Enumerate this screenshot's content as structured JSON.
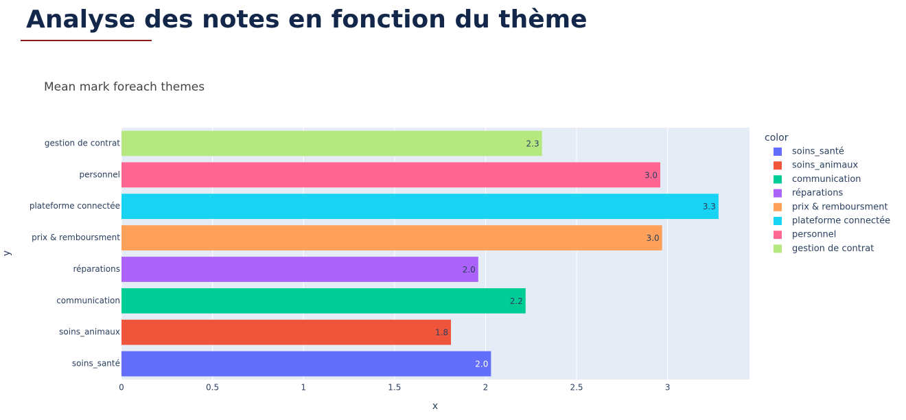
{
  "header": {
    "title": "Analyse des notes en fonction du thème"
  },
  "chart_data": {
    "type": "bar",
    "orientation": "horizontal",
    "title": "Mean mark foreach themes",
    "x_label": "x",
    "y_label": "y",
    "legend_title": "color",
    "categories": [
      "soins_santé",
      "soins_animaux",
      "communication",
      "réparations",
      "prix & remboursment",
      "plateforme connectée",
      "personnel",
      "gestion de contrat"
    ],
    "values": [
      2.03,
      1.81,
      2.22,
      1.96,
      2.97,
      3.28,
      2.96,
      2.31
    ],
    "value_labels": [
      "2.0",
      "1.8",
      "2.2",
      "2.0",
      "3.0",
      "3.3",
      "3.0",
      "2.3"
    ],
    "colors": [
      "#636efa",
      "#ef553b",
      "#00cc96",
      "#ab63fa",
      "#ffa15a",
      "#19d3f3",
      "#ff6692",
      "#b6e880"
    ],
    "xlim": [
      0,
      3.45
    ],
    "xticks": [
      0,
      0.5,
      1,
      1.5,
      2,
      2.5,
      3
    ],
    "grid": true,
    "legend": "right"
  }
}
